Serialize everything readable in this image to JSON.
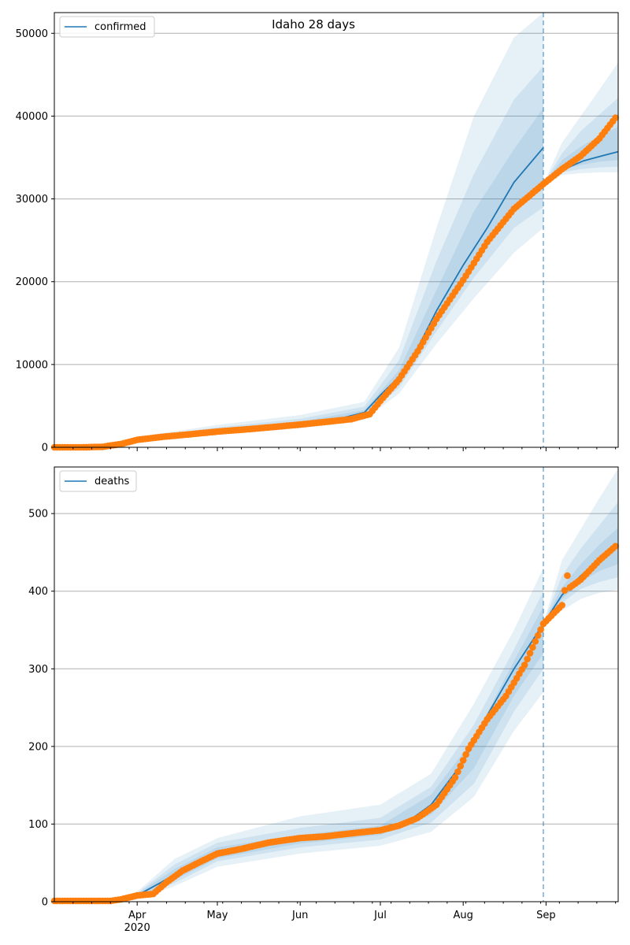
{
  "chart_data": [
    {
      "type": "line",
      "title": "Idaho 28 days",
      "xlabel": "",
      "ylabel": "",
      "grid": "y",
      "legend_position": "top-left",
      "x_range": [
        "2020-03-01",
        "2020-09-28"
      ],
      "ylim": [
        0,
        52500
      ],
      "y_ticks": [
        0,
        10000,
        20000,
        30000,
        40000,
        50000
      ],
      "x_ticks": [
        {
          "date": "2020-04-01",
          "label": "Apr",
          "sublabel": "2020"
        },
        {
          "date": "2020-05-01",
          "label": "May"
        },
        {
          "date": "2020-06-01",
          "label": "Jun"
        },
        {
          "date": "2020-07-01",
          "label": "Jul"
        },
        {
          "date": "2020-08-01",
          "label": "Aug"
        },
        {
          "date": "2020-09-01",
          "label": "Sep"
        }
      ],
      "forecast_start": "2020-08-31",
      "colors": {
        "model": "#1f77b4",
        "observed": "#ff7f0e",
        "band": "#1f77b4",
        "grid": "#b0b0b0"
      },
      "series": [
        {
          "name": "confirmed",
          "kind": "model-median",
          "points": [
            [
              "2020-03-01",
              0
            ],
            [
              "2020-03-15",
              30
            ],
            [
              "2020-03-22",
              150
            ],
            [
              "2020-03-29",
              500
            ],
            [
              "2020-04-05",
              1050
            ],
            [
              "2020-04-15",
              1500
            ],
            [
              "2020-05-01",
              1950
            ],
            [
              "2020-05-15",
              2300
            ],
            [
              "2020-06-01",
              2850
            ],
            [
              "2020-06-15",
              3400
            ],
            [
              "2020-06-25",
              4200
            ],
            [
              "2020-07-01",
              6300
            ],
            [
              "2020-07-08",
              8500
            ],
            [
              "2020-07-15",
              12000
            ],
            [
              "2020-07-22",
              16500
            ],
            [
              "2020-08-01",
              22000
            ],
            [
              "2020-08-10",
              26500
            ],
            [
              "2020-08-20",
              32000
            ],
            [
              "2020-08-31",
              36200
            ]
          ]
        },
        {
          "name": "",
          "kind": "model-median",
          "points": [
            [
              "2020-08-31",
              31800
            ],
            [
              "2020-09-05",
              33000
            ],
            [
              "2020-09-10",
              33900
            ],
            [
              "2020-09-15",
              34600
            ],
            [
              "2020-09-22",
              35200
            ],
            [
              "2020-09-28",
              35700
            ]
          ]
        },
        {
          "name": "",
          "kind": "observed",
          "points": [
            [
              "2020-03-01",
              0
            ],
            [
              "2020-03-12",
              5
            ],
            [
              "2020-03-19",
              60
            ],
            [
              "2020-03-26",
              400
            ],
            [
              "2020-04-01",
              900
            ],
            [
              "2020-04-10",
              1250
            ],
            [
              "2020-04-20",
              1550
            ],
            [
              "2020-05-01",
              1900
            ],
            [
              "2020-05-15",
              2250
            ],
            [
              "2020-06-01",
              2750
            ],
            [
              "2020-06-10",
              3050
            ],
            [
              "2020-06-20",
              3400
            ],
            [
              "2020-06-27",
              4000
            ],
            [
              "2020-07-01",
              5600
            ],
            [
              "2020-07-08",
              8200
            ],
            [
              "2020-07-15",
              11600
            ],
            [
              "2020-07-22",
              15500
            ],
            [
              "2020-08-01",
              20200
            ],
            [
              "2020-08-10",
              24800
            ],
            [
              "2020-08-20",
              28800
            ],
            [
              "2020-08-31",
              31800
            ],
            [
              "2020-09-07",
              33600
            ],
            [
              "2020-09-14",
              35200
            ],
            [
              "2020-09-21",
              37300
            ],
            [
              "2020-09-27",
              39800
            ]
          ]
        }
      ],
      "bands": [
        {
          "points": [
            [
              "2020-03-22",
              100,
              200
            ],
            [
              "2020-04-05",
              850,
              1450
            ],
            [
              "2020-05-01",
              1600,
              2700
            ],
            [
              "2020-06-01",
              2300,
              3900
            ],
            [
              "2020-06-25",
              3300,
              5500
            ],
            [
              "2020-07-08",
              6500,
              12000
            ],
            [
              "2020-07-22",
              12500,
              26500
            ],
            [
              "2020-08-05",
              18000,
              40000
            ],
            [
              "2020-08-20",
              23500,
              49500
            ],
            [
              "2020-08-31",
              26500,
              52500
            ]
          ]
        },
        {
          "points": [
            [
              "2020-03-22",
              120,
              180
            ],
            [
              "2020-04-05",
              920,
              1300
            ],
            [
              "2020-05-01",
              1750,
              2400
            ],
            [
              "2020-06-01",
              2500,
              3450
            ],
            [
              "2020-06-25",
              3600,
              4900
            ],
            [
              "2020-07-08",
              7200,
              10500
            ],
            [
              "2020-07-22",
              14000,
              22500
            ],
            [
              "2020-08-05",
              20500,
              33000
            ],
            [
              "2020-08-20",
              26500,
              42000
            ],
            [
              "2020-08-31",
              29000,
              46000
            ]
          ]
        },
        {
          "points": [
            [
              "2020-03-22",
              135,
              165
            ],
            [
              "2020-04-05",
              980,
              1180
            ],
            [
              "2020-05-01",
              1860,
              2150
            ],
            [
              "2020-06-01",
              2680,
              3100
            ],
            [
              "2020-06-25",
              3900,
              4500
            ],
            [
              "2020-07-08",
              7900,
              9300
            ],
            [
              "2020-07-22",
              15300,
              19000
            ],
            [
              "2020-08-05",
              23000,
              28500
            ],
            [
              "2020-08-20",
              29000,
              36000
            ],
            [
              "2020-08-31",
              31500,
              41000
            ]
          ]
        },
        {
          "points": [
            [
              "2020-08-31",
              31800,
              31800
            ],
            [
              "2020-09-07",
              32900,
              36800
            ],
            [
              "2020-09-14",
              33100,
              40000
            ],
            [
              "2020-09-21",
              33200,
              43200
            ],
            [
              "2020-09-28",
              33200,
              46500
            ]
          ]
        },
        {
          "points": [
            [
              "2020-08-31",
              31800,
              31800
            ],
            [
              "2020-09-07",
              33200,
              35500
            ],
            [
              "2020-09-14",
              33600,
              38200
            ],
            [
              "2020-09-21",
              33800,
              40200
            ],
            [
              "2020-09-28",
              33900,
              42200
            ]
          ]
        },
        {
          "points": [
            [
              "2020-08-31",
              31800,
              31800
            ],
            [
              "2020-09-07",
              33500,
              34700
            ],
            [
              "2020-09-14",
              34100,
              36300
            ],
            [
              "2020-09-21",
              34500,
              37600
            ],
            [
              "2020-09-28",
              34700,
              38700
            ]
          ]
        }
      ]
    },
    {
      "type": "line",
      "title": "",
      "xlabel": "",
      "ylabel": "",
      "grid": "y",
      "legend_position": "top-left",
      "x_range": [
        "2020-03-01",
        "2020-09-28"
      ],
      "ylim": [
        0,
        560
      ],
      "y_ticks": [
        0,
        100,
        200,
        300,
        400,
        500
      ],
      "x_ticks": [
        {
          "date": "2020-04-01",
          "label": "Apr",
          "sublabel": "2020"
        },
        {
          "date": "2020-05-01",
          "label": "May"
        },
        {
          "date": "2020-06-01",
          "label": "Jun"
        },
        {
          "date": "2020-07-01",
          "label": "Jul"
        },
        {
          "date": "2020-08-01",
          "label": "Aug"
        },
        {
          "date": "2020-09-01",
          "label": "Sep"
        }
      ],
      "forecast_start": "2020-08-31",
      "colors": {
        "model": "#1f77b4",
        "observed": "#ff7f0e",
        "band": "#1f77b4",
        "grid": "#b0b0b0"
      },
      "series": [
        {
          "name": "deaths",
          "kind": "model-median",
          "points": [
            [
              "2020-03-01",
              0
            ],
            [
              "2020-03-22",
              0
            ],
            [
              "2020-04-01",
              8
            ],
            [
              "2020-04-10",
              25
            ],
            [
              "2020-04-20",
              45
            ],
            [
              "2020-05-01",
              62
            ],
            [
              "2020-05-15",
              72
            ],
            [
              "2020-06-01",
              80
            ],
            [
              "2020-06-15",
              85
            ],
            [
              "2020-07-01",
              92
            ],
            [
              "2020-07-10",
              100
            ],
            [
              "2020-07-20",
              125
            ],
            [
              "2020-08-01",
              180
            ],
            [
              "2020-08-10",
              240
            ],
            [
              "2020-08-20",
              300
            ],
            [
              "2020-08-31",
              358
            ]
          ]
        },
        {
          "name": "",
          "kind": "model-median",
          "points": [
            [
              "2020-08-31",
              358
            ],
            [
              "2020-09-07",
              395
            ],
            [
              "2020-09-14",
              420
            ],
            [
              "2020-09-21",
              440
            ],
            [
              "2020-09-28",
              457
            ]
          ]
        },
        {
          "name": "",
          "kind": "observed",
          "points": [
            [
              "2020-03-01",
              1
            ],
            [
              "2020-03-22",
              1
            ],
            [
              "2020-03-26",
              3
            ],
            [
              "2020-04-01",
              8
            ],
            [
              "2020-04-07",
              10
            ],
            [
              "2020-04-12",
              25
            ],
            [
              "2020-04-18",
              40
            ],
            [
              "2020-04-25",
              52
            ],
            [
              "2020-05-01",
              62
            ],
            [
              "2020-05-10",
              68
            ],
            [
              "2020-05-20",
              76
            ],
            [
              "2020-06-01",
              82
            ],
            [
              "2020-06-10",
              84
            ],
            [
              "2020-06-20",
              88
            ],
            [
              "2020-07-01",
              92
            ],
            [
              "2020-07-08",
              98
            ],
            [
              "2020-07-15",
              108
            ],
            [
              "2020-07-22",
              125
            ],
            [
              "2020-07-29",
              160
            ],
            [
              "2020-08-03",
              197
            ],
            [
              "2020-08-10",
              235
            ],
            [
              "2020-08-17",
              265
            ],
            [
              "2020-08-24",
              305
            ],
            [
              "2020-08-31",
              358
            ],
            [
              "2020-09-04",
              372
            ],
            [
              "2020-09-07",
              382
            ],
            [
              "2020-09-09",
              420
            ],
            [
              "2020-09-10",
              405
            ],
            [
              "2020-09-14",
              415
            ],
            [
              "2020-09-21",
              440
            ],
            [
              "2020-09-27",
              458
            ]
          ]
        }
      ],
      "bands": [
        {
          "points": [
            [
              "2020-03-22",
              0,
              2
            ],
            [
              "2020-04-01",
              3,
              13
            ],
            [
              "2020-04-15",
              20,
              55
            ],
            [
              "2020-05-01",
              45,
              82
            ],
            [
              "2020-06-01",
              62,
              110
            ],
            [
              "2020-07-01",
              72,
              125
            ],
            [
              "2020-07-20",
              90,
              165
            ],
            [
              "2020-08-05",
              135,
              255
            ],
            [
              "2020-08-20",
              220,
              350
            ],
            [
              "2020-08-31",
              270,
              430
            ]
          ]
        },
        {
          "points": [
            [
              "2020-03-22",
              0,
              1.5
            ],
            [
              "2020-04-01",
              4,
              11
            ],
            [
              "2020-04-15",
              24,
              48
            ],
            [
              "2020-05-01",
              52,
              76
            ],
            [
              "2020-06-01",
              70,
              95
            ],
            [
              "2020-07-01",
              80,
              108
            ],
            [
              "2020-07-20",
              102,
              148
            ],
            [
              "2020-08-05",
              152,
              228
            ],
            [
              "2020-08-20",
              245,
              325
            ],
            [
              "2020-08-31",
              300,
              400
            ]
          ]
        },
        {
          "points": [
            [
              "2020-03-22",
              0,
              1
            ],
            [
              "2020-04-01",
              5,
              10
            ],
            [
              "2020-04-15",
              28,
              42
            ],
            [
              "2020-05-01",
              56,
              70
            ],
            [
              "2020-06-01",
              75,
              86
            ],
            [
              "2020-07-01",
              86,
              98
            ],
            [
              "2020-07-20",
              112,
              138
            ],
            [
              "2020-08-05",
              172,
              210
            ],
            [
              "2020-08-20",
              265,
              310
            ],
            [
              "2020-08-31",
              320,
              380
            ]
          ]
        },
        {
          "points": [
            [
              "2020-08-31",
              358,
              358
            ],
            [
              "2020-09-07",
              375,
              440
            ],
            [
              "2020-09-14",
              390,
              480
            ],
            [
              "2020-09-21",
              398,
              520
            ],
            [
              "2020-09-28",
              402,
              558
            ]
          ]
        },
        {
          "points": [
            [
              "2020-08-31",
              358,
              358
            ],
            [
              "2020-09-07",
              385,
              420
            ],
            [
              "2020-09-14",
              403,
              455
            ],
            [
              "2020-09-21",
              412,
              485
            ],
            [
              "2020-09-28",
              418,
              515
            ]
          ]
        },
        {
          "points": [
            [
              "2020-08-31",
              358,
              358
            ],
            [
              "2020-09-07",
              390,
              405
            ],
            [
              "2020-09-14",
              412,
              435
            ],
            [
              "2020-09-21",
              426,
              460
            ],
            [
              "2020-09-28",
              435,
              482
            ]
          ]
        }
      ]
    }
  ]
}
